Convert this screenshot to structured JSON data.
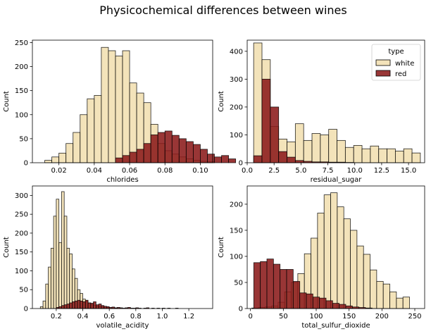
{
  "figure": {
    "title": "Physicochemical differences between wines"
  },
  "colors": {
    "white": "#f0dba6",
    "red": "#8b1a1a",
    "edge": "#000000"
  },
  "chart_data": [
    {
      "type": "histogram",
      "xlabel": "chlorides",
      "ylabel": "Count",
      "xlim": [
        0.005,
        0.107
      ],
      "ylim": [
        0,
        255
      ],
      "xticks": [
        0.02,
        0.04,
        0.06,
        0.08,
        0.1
      ],
      "xtick_labels": [
        "0.02",
        "0.04",
        "0.06",
        "0.08",
        "0.10"
      ],
      "yticks": [
        0,
        50,
        100,
        150,
        200,
        250
      ],
      "series": [
        {
          "name": "white",
          "bin_start": 0.012,
          "bin_width": 0.004,
          "values": [
            5,
            12,
            20,
            40,
            63,
            100,
            133,
            140,
            240,
            233,
            222,
            233,
            166,
            145,
            125,
            80,
            40,
            25,
            18,
            12,
            8,
            5,
            3,
            2
          ]
        },
        {
          "name": "red",
          "bin_start": 0.052,
          "bin_width": 0.004,
          "values": [
            10,
            15,
            22,
            28,
            40,
            58,
            63,
            66,
            57,
            50,
            44,
            38,
            28,
            18,
            12,
            15,
            8
          ]
        }
      ]
    },
    {
      "type": "histogram",
      "xlabel": "residual_sugar",
      "ylabel": "Count",
      "xlim": [
        0,
        16.5
      ],
      "ylim": [
        0,
        440
      ],
      "xticks": [
        0,
        2.5,
        5,
        7.5,
        10,
        12.5,
        15
      ],
      "xtick_labels": [
        "0.0",
        "2.5",
        "5.0",
        "7.5",
        "10.0",
        "12.5",
        "15.0"
      ],
      "yticks": [
        0,
        100,
        200,
        300,
        400
      ],
      "legend": {
        "title": "type",
        "position": "upper right",
        "entries": [
          "white",
          "red"
        ]
      },
      "series": [
        {
          "name": "white",
          "bin_start": 0.6,
          "bin_width": 0.775,
          "values": [
            430,
            370,
            130,
            85,
            75,
            140,
            80,
            105,
            100,
            120,
            80,
            55,
            62,
            50,
            60,
            50,
            50,
            42,
            50,
            35
          ]
        },
        {
          "name": "red",
          "bin_start": 0.6,
          "bin_width": 0.775,
          "values": [
            25,
            300,
            200,
            40,
            20,
            8,
            5,
            3,
            3,
            2,
            2,
            1
          ]
        }
      ]
    },
    {
      "type": "histogram",
      "xlabel": "volatile_acidity",
      "ylabel": "Count",
      "xlim": [
        0.02,
        1.38
      ],
      "ylim": [
        0,
        325
      ],
      "xticks": [
        0.2,
        0.4,
        0.6,
        0.8,
        1.0,
        1.2
      ],
      "xtick_labels": [
        "0.2",
        "0.4",
        "0.6",
        "0.8",
        "1.0",
        "1.2"
      ],
      "yticks": [
        0,
        50,
        100,
        150,
        200,
        250,
        300
      ],
      "series": [
        {
          "name": "white",
          "bin_start": 0.08,
          "bin_width": 0.02,
          "values": [
            5,
            20,
            65,
            110,
            160,
            245,
            290,
            175,
            310,
            245,
            160,
            145,
            105,
            80,
            50,
            40,
            25,
            20,
            15,
            10,
            8,
            6,
            5,
            4,
            3,
            3,
            2,
            2,
            1,
            1
          ]
        },
        {
          "name": "red",
          "bin_start": 0.2,
          "bin_width": 0.02,
          "values": [
            3,
            5,
            8,
            10,
            12,
            15,
            18,
            20,
            22,
            20,
            18,
            22,
            15,
            14,
            18,
            10,
            12,
            8,
            6,
            5,
            3,
            4,
            2,
            3,
            2,
            1,
            2,
            3,
            1,
            1,
            2,
            1,
            0,
            1,
            2,
            0,
            1,
            0,
            1,
            0,
            1,
            0,
            1,
            0,
            0,
            1
          ]
        }
      ]
    },
    {
      "type": "histogram",
      "xlabel": "total_sulfur_dioxide",
      "ylabel": "Count",
      "xlim": [
        -5,
        265
      ],
      "ylim": [
        0,
        235
      ],
      "xticks": [
        0,
        50,
        100,
        150,
        200,
        250
      ],
      "xtick_labels": [
        "0",
        "50",
        "100",
        "150",
        "200",
        "250"
      ],
      "yticks": [
        0,
        50,
        100,
        150,
        200
      ],
      "series": [
        {
          "name": "white",
          "bin_start": 2,
          "bin_width": 10,
          "values": [
            1,
            2,
            3,
            5,
            12,
            32,
            50,
            67,
            105,
            135,
            183,
            218,
            222,
            195,
            172,
            150,
            120,
            104,
            74,
            52,
            47,
            32,
            20,
            22
          ]
        },
        {
          "name": "red",
          "bin_start": 5,
          "bin_width": 10,
          "values": [
            88,
            90,
            95,
            85,
            75,
            75,
            52,
            30,
            28,
            22,
            20,
            15,
            10,
            8,
            5,
            3,
            2,
            1
          ]
        }
      ]
    }
  ]
}
